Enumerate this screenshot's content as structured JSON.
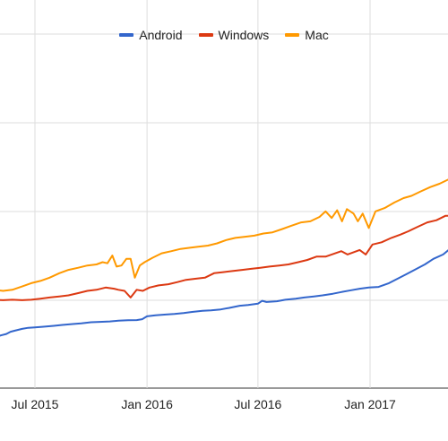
{
  "chart_data": {
    "type": "line",
    "title": "",
    "xlabel": "",
    "ylabel": "",
    "x_ticks": [
      "Jul 2015",
      "Jan 2016",
      "Jul 2016",
      "Jan 2017"
    ],
    "grid": true,
    "legend_position": "top",
    "series": [
      {
        "name": "Android",
        "color": "#3366cc",
        "points": [
          [
            "2015-04-25",
            2.1
          ],
          [
            "2015-05-01",
            2.35
          ],
          [
            "2015-05-08",
            2.4
          ],
          [
            "2015-05-15",
            2.45
          ],
          [
            "2015-05-22",
            2.55
          ],
          [
            "2015-05-29",
            2.6
          ],
          [
            "2015-06-10",
            2.68
          ],
          [
            "2015-06-20",
            2.73
          ],
          [
            "2015-07-01",
            2.75
          ],
          [
            "2015-07-15",
            2.78
          ],
          [
            "2015-08-01",
            2.82
          ],
          [
            "2015-08-15",
            2.86
          ],
          [
            "2015-09-01",
            2.9
          ],
          [
            "2015-09-15",
            2.93
          ],
          [
            "2015-10-01",
            2.98
          ],
          [
            "2015-10-15",
            3.0
          ],
          [
            "2015-11-01",
            3.02
          ],
          [
            "2015-11-15",
            3.05
          ],
          [
            "2015-12-01",
            3.07
          ],
          [
            "2015-12-15",
            3.08
          ],
          [
            "2015-12-24",
            3.12
          ],
          [
            "2016-01-01",
            3.25
          ],
          [
            "2016-01-15",
            3.3
          ],
          [
            "2016-02-01",
            3.33
          ],
          [
            "2016-02-15",
            3.36
          ],
          [
            "2016-03-01",
            3.4
          ],
          [
            "2016-03-15",
            3.45
          ],
          [
            "2016-04-01",
            3.5
          ],
          [
            "2016-04-15",
            3.52
          ],
          [
            "2016-05-01",
            3.56
          ],
          [
            "2016-05-15",
            3.63
          ],
          [
            "2016-06-01",
            3.73
          ],
          [
            "2016-06-15",
            3.76
          ],
          [
            "2016-07-01",
            3.82
          ],
          [
            "2016-07-08",
            3.95
          ],
          [
            "2016-07-15",
            3.9
          ],
          [
            "2016-08-01",
            3.93
          ],
          [
            "2016-08-15",
            4.0
          ],
          [
            "2016-09-01",
            4.05
          ],
          [
            "2016-09-15",
            4.1
          ],
          [
            "2016-10-01",
            4.15
          ],
          [
            "2016-10-15",
            4.2
          ],
          [
            "2016-11-01",
            4.27
          ],
          [
            "2016-11-15",
            4.35
          ],
          [
            "2016-12-01",
            4.43
          ],
          [
            "2016-12-15",
            4.5
          ],
          [
            "2016-12-30",
            4.55
          ],
          [
            "2017-01-15",
            4.58
          ],
          [
            "2017-02-01",
            4.75
          ],
          [
            "2017-02-15",
            4.95
          ],
          [
            "2017-03-01",
            5.15
          ],
          [
            "2017-03-15",
            5.35
          ],
          [
            "2017-04-01",
            5.6
          ],
          [
            "2017-04-15",
            5.85
          ],
          [
            "2017-05-01",
            6.05
          ],
          [
            "2017-05-10",
            6.25
          ],
          [
            "2017-05-20",
            6.3
          ],
          [
            "2017-06-01",
            6.4
          ]
        ]
      },
      {
        "name": "Windows",
        "color": "#dc3912",
        "points": [
          [
            "2015-04-25",
            4.0
          ],
          [
            "2015-05-10",
            3.98
          ],
          [
            "2015-05-25",
            4.0
          ],
          [
            "2015-06-10",
            3.98
          ],
          [
            "2015-06-25",
            4.0
          ],
          [
            "2015-07-10",
            4.05
          ],
          [
            "2015-07-25",
            4.1
          ],
          [
            "2015-08-10",
            4.15
          ],
          [
            "2015-08-25",
            4.2
          ],
          [
            "2015-09-10",
            4.3
          ],
          [
            "2015-09-25",
            4.4
          ],
          [
            "2015-10-10",
            4.45
          ],
          [
            "2015-10-25",
            4.55
          ],
          [
            "2015-11-08",
            4.5
          ],
          [
            "2015-11-15",
            4.45
          ],
          [
            "2015-11-25",
            4.4
          ],
          [
            "2015-12-05",
            4.1
          ],
          [
            "2015-12-15",
            4.45
          ],
          [
            "2015-12-25",
            4.4
          ],
          [
            "2016-01-05",
            4.55
          ],
          [
            "2016-01-20",
            4.65
          ],
          [
            "2016-02-05",
            4.7
          ],
          [
            "2016-02-20",
            4.8
          ],
          [
            "2016-03-05",
            4.9
          ],
          [
            "2016-03-20",
            4.95
          ],
          [
            "2016-04-05",
            5.0
          ],
          [
            "2016-04-20",
            5.2
          ],
          [
            "2016-05-05",
            5.25
          ],
          [
            "2016-05-20",
            5.3
          ],
          [
            "2016-06-05",
            5.35
          ],
          [
            "2016-06-20",
            5.4
          ],
          [
            "2016-07-05",
            5.45
          ],
          [
            "2016-07-20",
            5.5
          ],
          [
            "2016-08-05",
            5.55
          ],
          [
            "2016-08-20",
            5.6
          ],
          [
            "2016-09-05",
            5.7
          ],
          [
            "2016-09-20",
            5.8
          ],
          [
            "2016-10-05",
            5.95
          ],
          [
            "2016-10-20",
            5.95
          ],
          [
            "2016-11-05",
            6.1
          ],
          [
            "2016-11-15",
            6.2
          ],
          [
            "2016-11-25",
            6.05
          ],
          [
            "2016-12-05",
            6.15
          ],
          [
            "2016-12-15",
            6.25
          ],
          [
            "2016-12-25",
            6.05
          ],
          [
            "2017-01-05",
            6.5
          ],
          [
            "2017-01-20",
            6.6
          ],
          [
            "2017-02-05",
            6.8
          ],
          [
            "2017-02-20",
            6.95
          ],
          [
            "2017-03-05",
            7.1
          ],
          [
            "2017-03-20",
            7.3
          ],
          [
            "2017-04-05",
            7.5
          ],
          [
            "2017-04-20",
            7.6
          ],
          [
            "2017-05-05",
            7.8
          ],
          [
            "2017-05-20",
            7.8
          ],
          [
            "2017-06-01",
            7.9
          ]
        ]
      },
      {
        "name": "Mac",
        "color": "#ff9900",
        "points": [
          [
            "2015-04-25",
            4.45
          ],
          [
            "2015-05-10",
            4.4
          ],
          [
            "2015-05-25",
            4.45
          ],
          [
            "2015-06-10",
            4.6
          ],
          [
            "2015-06-25",
            4.75
          ],
          [
            "2015-07-10",
            4.85
          ],
          [
            "2015-07-25",
            5.0
          ],
          [
            "2015-08-10",
            5.2
          ],
          [
            "2015-08-25",
            5.35
          ],
          [
            "2015-09-10",
            5.45
          ],
          [
            "2015-09-25",
            5.55
          ],
          [
            "2015-10-10",
            5.6
          ],
          [
            "2015-10-20",
            5.7
          ],
          [
            "2015-10-28",
            5.65
          ],
          [
            "2015-11-05",
            6.0
          ],
          [
            "2015-11-12",
            5.5
          ],
          [
            "2015-11-20",
            5.55
          ],
          [
            "2015-11-28",
            5.85
          ],
          [
            "2015-12-05",
            5.85
          ],
          [
            "2015-12-12",
            5.0
          ],
          [
            "2015-12-20",
            5.55
          ],
          [
            "2015-12-28",
            5.7
          ],
          [
            "2016-01-10",
            5.9
          ],
          [
            "2016-01-25",
            6.1
          ],
          [
            "2016-02-10",
            6.2
          ],
          [
            "2016-02-25",
            6.3
          ],
          [
            "2016-03-10",
            6.35
          ],
          [
            "2016-03-25",
            6.4
          ],
          [
            "2016-04-10",
            6.45
          ],
          [
            "2016-04-25",
            6.55
          ],
          [
            "2016-05-10",
            6.7
          ],
          [
            "2016-05-25",
            6.8
          ],
          [
            "2016-06-10",
            6.85
          ],
          [
            "2016-06-25",
            6.9
          ],
          [
            "2016-07-10",
            7.0
          ],
          [
            "2016-07-25",
            7.05
          ],
          [
            "2016-08-10",
            7.2
          ],
          [
            "2016-08-25",
            7.35
          ],
          [
            "2016-09-10",
            7.5
          ],
          [
            "2016-09-25",
            7.55
          ],
          [
            "2016-10-10",
            7.75
          ],
          [
            "2016-10-20",
            8.0
          ],
          [
            "2016-10-30",
            7.7
          ],
          [
            "2016-11-08",
            8.05
          ],
          [
            "2016-11-16",
            7.55
          ],
          [
            "2016-11-24",
            8.1
          ],
          [
            "2016-12-05",
            7.9
          ],
          [
            "2016-12-12",
            7.55
          ],
          [
            "2016-12-20",
            7.9
          ],
          [
            "2016-12-30",
            7.25
          ],
          [
            "2017-01-10",
            8.0
          ],
          [
            "2017-01-25",
            8.15
          ],
          [
            "2017-02-10",
            8.4
          ],
          [
            "2017-02-25",
            8.6
          ],
          [
            "2017-03-10",
            8.7
          ],
          [
            "2017-03-25",
            8.9
          ],
          [
            "2017-04-10",
            9.1
          ],
          [
            "2017-04-25",
            9.25
          ],
          [
            "2017-05-10",
            9.45
          ],
          [
            "2017-05-25",
            9.4
          ],
          [
            "2017-06-01",
            9.35
          ]
        ]
      }
    ]
  }
}
